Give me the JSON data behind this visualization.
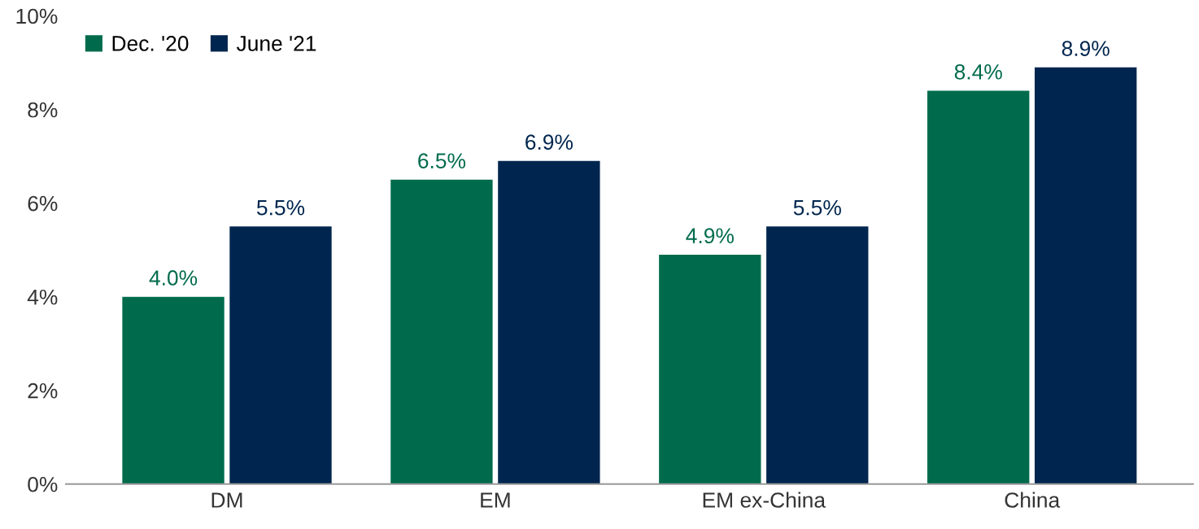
{
  "chart_data": {
    "type": "bar",
    "categories": [
      "DM",
      "EM",
      "EM ex-China",
      "China"
    ],
    "series": [
      {
        "name": "Dec. '20",
        "color": "#006b4c",
        "values": [
          4.0,
          6.5,
          4.9,
          8.4
        ],
        "value_labels": [
          "4.0%",
          "6.5%",
          "4.9%",
          "8.4%"
        ]
      },
      {
        "name": "June '21",
        "color": "#00264f",
        "values": [
          5.5,
          6.9,
          5.5,
          8.9
        ],
        "value_labels": [
          "5.5%",
          "6.9%",
          "5.5%",
          "8.9%"
        ]
      }
    ],
    "ylim": [
      0,
      10
    ],
    "yticks": [
      {
        "value": 0,
        "label": "0%"
      },
      {
        "value": 2,
        "label": "2%"
      },
      {
        "value": 4,
        "label": "4%"
      },
      {
        "value": 6,
        "label": "6%"
      },
      {
        "value": 8,
        "label": "8%"
      },
      {
        "value": 10,
        "label": "10%"
      }
    ],
    "grid": false,
    "legend": "top left"
  }
}
